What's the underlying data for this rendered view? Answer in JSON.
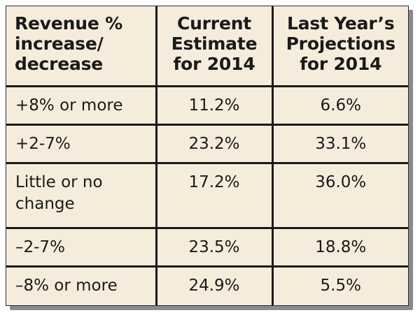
{
  "chart_data": {
    "type": "table",
    "columns": [
      "Revenue %\nincrease/\ndecrease",
      "Current\nEstimate\nfor 2014",
      "Last Year’s\nProjections\nfor 2014"
    ],
    "rows": [
      {
        "category": "+8% or more",
        "current": "11.2%",
        "last_year": "6.6%"
      },
      {
        "category": "+2-7%",
        "current": "23.2%",
        "last_year": "33.1%"
      },
      {
        "category": "Little or no\nchange",
        "current": "17.2%",
        "last_year": "36.0%"
      },
      {
        "category": "–2-7%",
        "current": "23.5%",
        "last_year": "18.8%"
      },
      {
        "category": "–8% or more",
        "current": "24.9%",
        "last_year": "5.5%"
      }
    ]
  },
  "colors": {
    "background": "#f5ecdc",
    "rule": "#1a1a1a",
    "text": "#1a1a1a",
    "shadow": "#8a8a8a"
  }
}
